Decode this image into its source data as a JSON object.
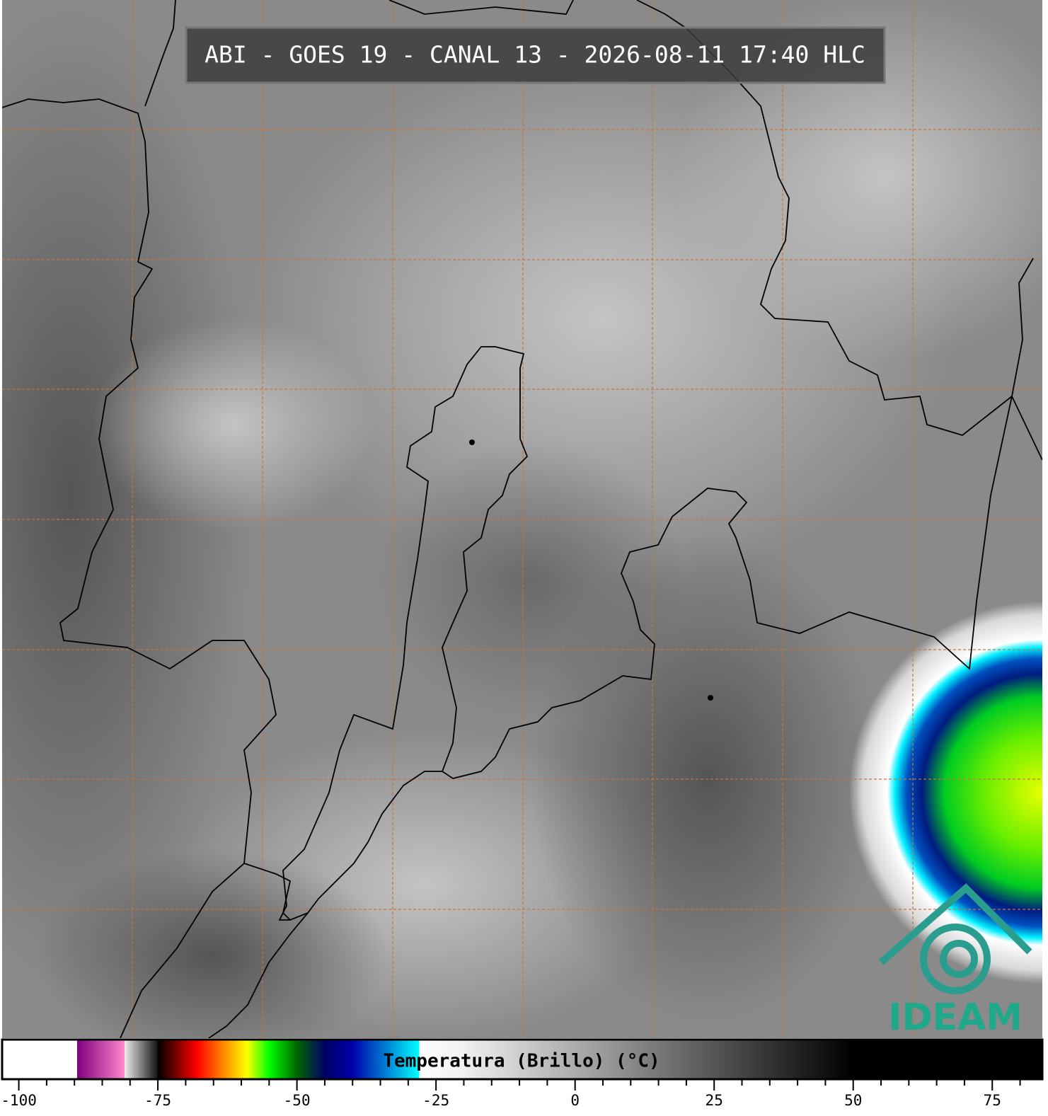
{
  "title": "ABI - GOES 19 - CANAL 13 - 2026-08-11 17:40 HLC",
  "logo": "IDEAM",
  "colorbar": {
    "label": "Temperatura (Brillo) (°C)",
    "xlim": [
      -103,
      84
    ],
    "xticks": [
      -100,
      -75,
      -50,
      -25,
      0,
      25,
      50,
      75
    ],
    "minor_ticks": [
      -95,
      -90,
      -85,
      -80,
      -70,
      -65,
      -60,
      -55,
      -45,
      -40,
      -35,
      -30,
      -20,
      -15,
      -10,
      -5,
      5,
      10,
      15,
      20,
      30,
      35,
      40,
      45,
      55,
      60,
      65,
      70,
      80
    ],
    "colorscale": [
      [
        -103,
        "#ffffff"
      ],
      [
        -89.5,
        "#ffffff"
      ],
      [
        -89.5,
        "#800080"
      ],
      [
        -81,
        "#ff88cc"
      ],
      [
        -81,
        "#eeeeee"
      ],
      [
        -75,
        "#111111"
      ],
      [
        -75,
        "#000000"
      ],
      [
        -68,
        "#ff0000"
      ],
      [
        -62,
        "#ffaa00"
      ],
      [
        -59,
        "#ffff00"
      ],
      [
        -55,
        "#00ff00"
      ],
      [
        -50,
        "#006600"
      ],
      [
        -45,
        "#000066"
      ],
      [
        -40,
        "#0000aa"
      ],
      [
        -28,
        "#00ffff"
      ],
      [
        -28,
        "#ffffff"
      ],
      [
        -20,
        "#f0f0f0"
      ],
      [
        50,
        "#000000"
      ],
      [
        84,
        "#000000"
      ]
    ]
  }
}
